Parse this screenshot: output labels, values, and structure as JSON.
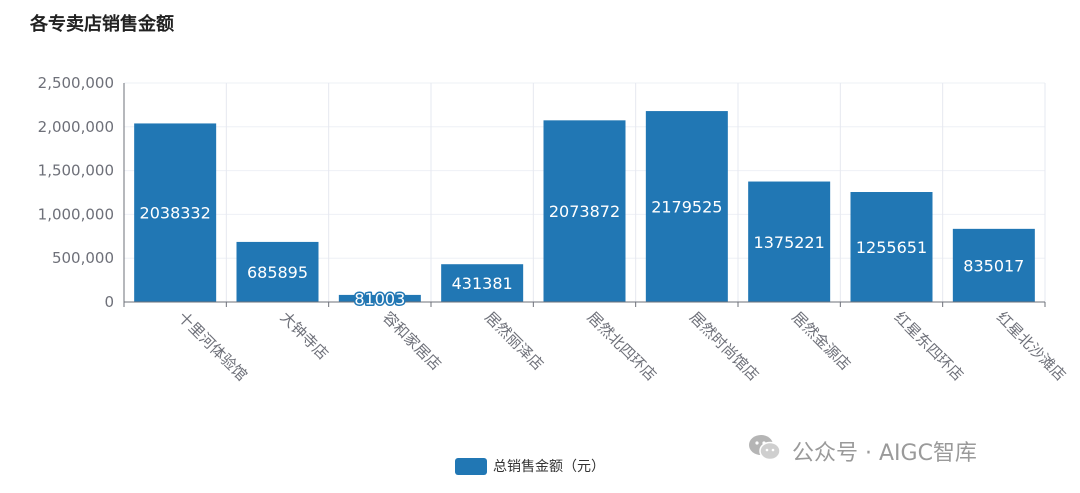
{
  "chart_data": {
    "type": "bar",
    "title": "各专卖店销售金额",
    "categories": [
      "十里河体验馆",
      "大钟寺店",
      "容和家居店",
      "居然丽泽店",
      "居然北四环店",
      "居然时尚馆店",
      "居然金源店",
      "红星东四环店",
      "红星北沙滩店"
    ],
    "series": [
      {
        "name": "总销售金额（元）",
        "values": [
          2038332,
          685895,
          81003,
          431381,
          2073872,
          2179525,
          1375221,
          1255651,
          835017
        ],
        "color": "#2177b4"
      }
    ],
    "yticks": [
      "0",
      "500,000",
      "1,000,000",
      "1,500,000",
      "2,000,000",
      "2,500,000"
    ],
    "ylim": [
      0,
      2500000
    ],
    "grid": true,
    "legend": "bottom-center"
  },
  "watermark": {
    "text": "公众号 · AIGC智库",
    "icon": "wechat-icon"
  }
}
